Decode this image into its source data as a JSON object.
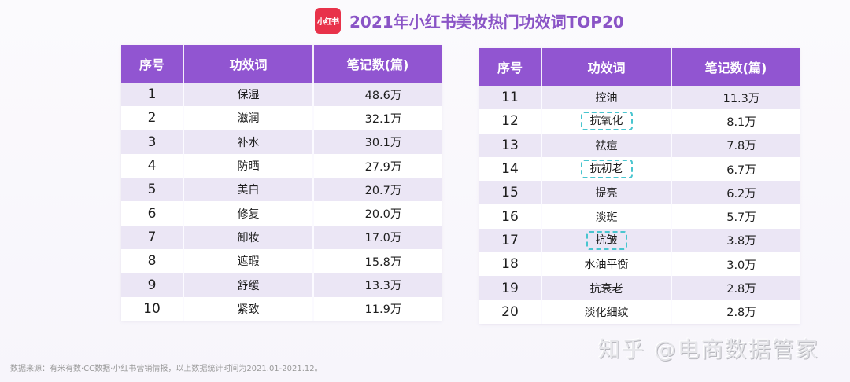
{
  "header": {
    "logo_text": "小红书",
    "title": "2021年小红书美妆热门功效词TOP20"
  },
  "colors": {
    "accent_purple": "#9155d1",
    "title_purple": "#8a54c6",
    "logo_red": "#e8324a",
    "row_stripe": "#ebe6f5",
    "highlight_dashed": "#49c5cf"
  },
  "table_columns": [
    "序号",
    "功效词",
    "笔记数(篇)"
  ],
  "left_table": {
    "rows": [
      {
        "rank": "1",
        "word": "保湿",
        "count": "48.6万"
      },
      {
        "rank": "2",
        "word": "滋润",
        "count": "32.1万"
      },
      {
        "rank": "3",
        "word": "补水",
        "count": "30.1万"
      },
      {
        "rank": "4",
        "word": "防晒",
        "count": "27.9万"
      },
      {
        "rank": "5",
        "word": "美白",
        "count": "20.7万"
      },
      {
        "rank": "6",
        "word": "修复",
        "count": "20.0万"
      },
      {
        "rank": "7",
        "word": "卸妆",
        "count": "17.0万"
      },
      {
        "rank": "8",
        "word": "遮瑕",
        "count": "15.8万"
      },
      {
        "rank": "9",
        "word": "舒缓",
        "count": "13.3万"
      },
      {
        "rank": "10",
        "word": "紧致",
        "count": "11.9万"
      }
    ]
  },
  "right_table": {
    "rows": [
      {
        "rank": "11",
        "word": "控油",
        "count": "11.3万",
        "highlight": false
      },
      {
        "rank": "12",
        "word": "抗氧化",
        "count": "8.1万",
        "highlight": true
      },
      {
        "rank": "13",
        "word": "祛痘",
        "count": "7.8万",
        "highlight": false
      },
      {
        "rank": "14",
        "word": "抗初老",
        "count": "6.7万",
        "highlight": true
      },
      {
        "rank": "15",
        "word": "提亮",
        "count": "6.2万",
        "highlight": false
      },
      {
        "rank": "16",
        "word": "淡斑",
        "count": "5.7万",
        "highlight": false
      },
      {
        "rank": "17",
        "word": "抗皱",
        "count": "3.8万",
        "highlight": true
      },
      {
        "rank": "18",
        "word": "水油平衡",
        "count": "3.0万",
        "highlight": false
      },
      {
        "rank": "19",
        "word": "抗衰老",
        "count": "2.8万",
        "highlight": false
      },
      {
        "rank": "20",
        "word": "淡化细纹",
        "count": "2.8万",
        "highlight": false
      }
    ]
  },
  "footnote": "数据来源：有米有数·CC数据·小红书营销情报，以上数据统计时间为2021.01-2021.12。",
  "watermark": "知乎 @电商数据管家"
}
